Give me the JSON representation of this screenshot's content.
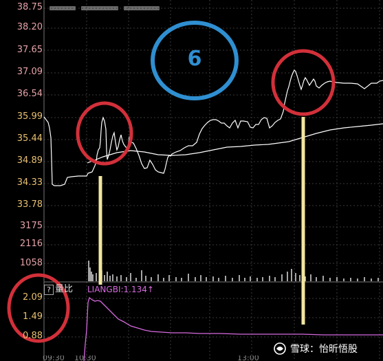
{
  "price_axis": {
    "labels": [
      "38.75",
      "38.20",
      "37.65",
      "37.09",
      "36.54",
      "35.99",
      "35.44",
      "34.89",
      "34.33",
      "33.78"
    ],
    "upper_count": 5
  },
  "volume_axis": {
    "labels": [
      "3175",
      "2116",
      "1058"
    ]
  },
  "ratio_axis": {
    "labels": [
      "2.09",
      "1.49",
      "0.88"
    ]
  },
  "ratio_panel": {
    "help_icon": "?",
    "title": "量比",
    "indicator": "LIANGBI:1.134↑"
  },
  "annotation": {
    "number": "6",
    "circle_color": "#2f8fd1",
    "highlight_color": "#d2303a",
    "marker_line_color": "#f2e6a0"
  },
  "watermark": {
    "label": "雪球：怡昕悟股",
    "icon": "snowball-logo-icon"
  },
  "bottom_axis": {
    "labels": [
      "09:30",
      "10:30",
      "13:00"
    ]
  },
  "colors": {
    "background": "#000000",
    "grid": "#3a3a3a",
    "price_line": "#ffffff",
    "avg_line": "#ffffff",
    "ratio_line": "#d76ae0",
    "volume_bar": "#dddddd",
    "price_label_upper": "#e6a3a8",
    "price_label_lower": "#e8c070"
  }
}
